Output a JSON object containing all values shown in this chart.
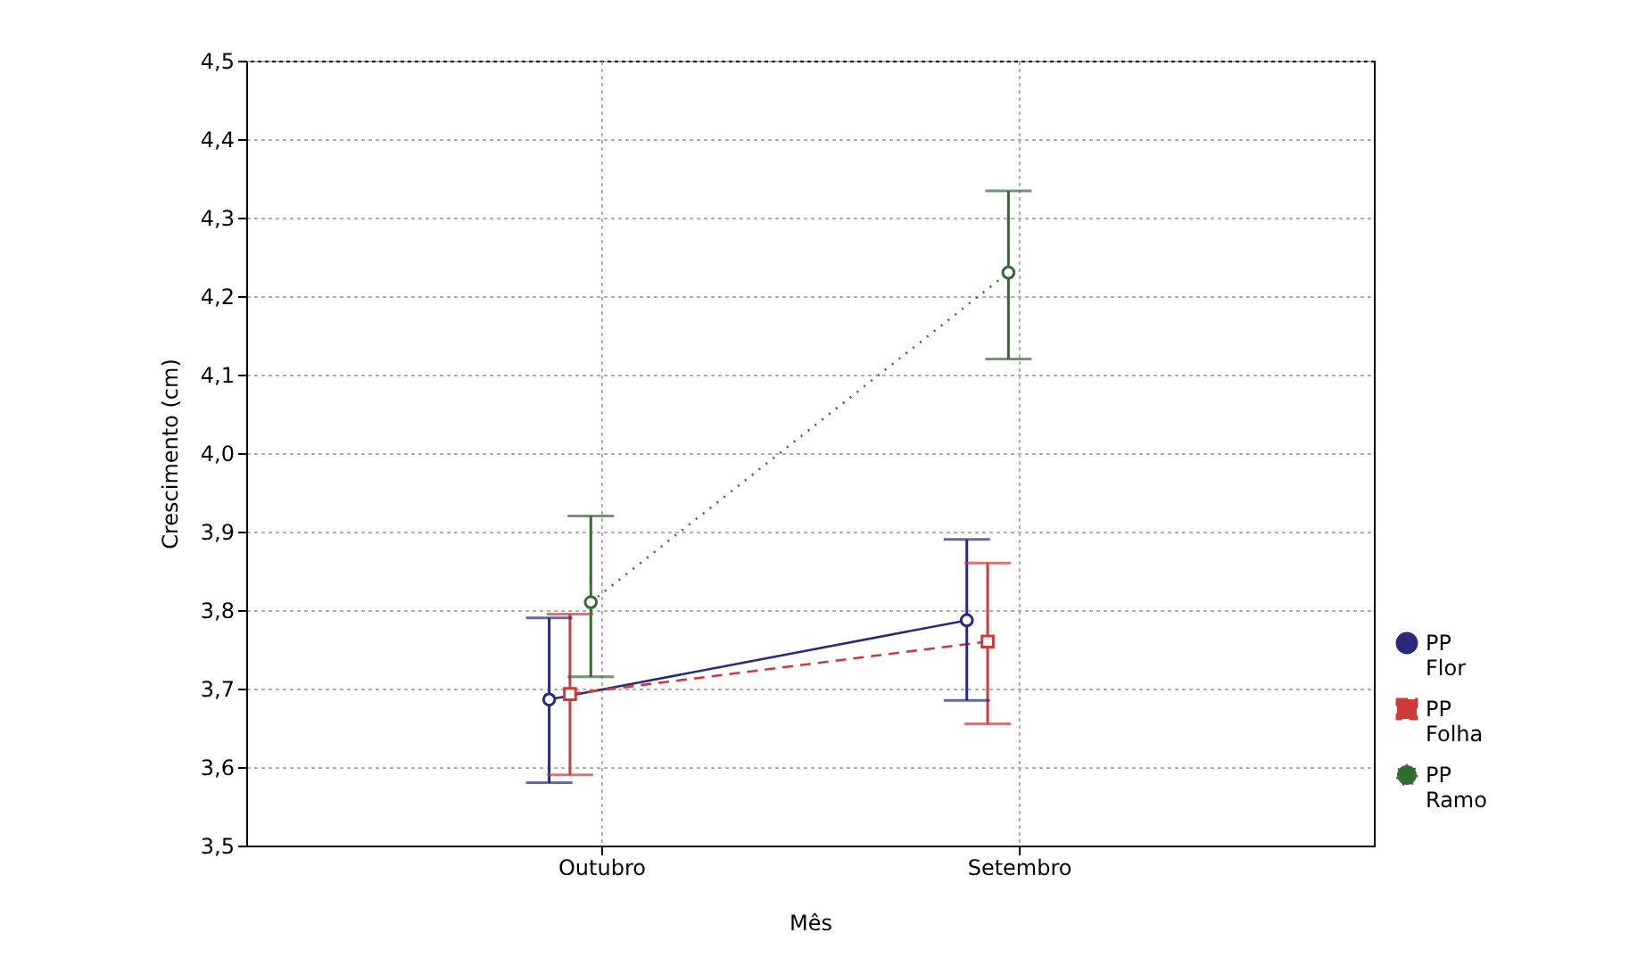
{
  "chart_data": {
    "type": "line",
    "xlabel": "Mês",
    "ylabel": "Crescimento (cm)",
    "categories": [
      "Outubro",
      "Setembro"
    ],
    "ylim": [
      3.5,
      4.5
    ],
    "yticks": [
      {
        "value": 3.5,
        "label": "3,5"
      },
      {
        "value": 3.6,
        "label": "3,6"
      },
      {
        "value": 3.7,
        "label": "3,7"
      },
      {
        "value": 3.8,
        "label": "3,8"
      },
      {
        "value": 3.9,
        "label": "3,9"
      },
      {
        "value": 4.0,
        "label": "4,0"
      },
      {
        "value": 4.1,
        "label": "4,1"
      },
      {
        "value": 4.2,
        "label": "4,2"
      },
      {
        "value": 4.3,
        "label": "4,3"
      },
      {
        "value": 4.4,
        "label": "4,4"
      },
      {
        "value": 4.5,
        "label": "4,5"
      }
    ],
    "grid": true,
    "legend": "bottom right",
    "series": [
      {
        "name": "PP Flor",
        "color": "#2a2a7a",
        "values": [
          3.686,
          3.787
        ],
        "errors": [
          [
            3.58,
            3.79
          ],
          [
            3.685,
            3.89
          ]
        ],
        "marker": "circle",
        "line_style": "solid"
      },
      {
        "name": "PP Folha",
        "color": "#cc3a3a",
        "values": [
          3.693,
          3.76
        ],
        "errors": [
          [
            3.59,
            3.795
          ],
          [
            3.655,
            3.86
          ]
        ],
        "marker": "square",
        "line_style": "dashed"
      },
      {
        "name": "PP Ramo",
        "color": "#2f6e2f",
        "values": [
          3.81,
          4.23
        ],
        "errors": [
          [
            3.715,
            3.92
          ],
          [
            4.12,
            4.334
          ]
        ],
        "marker": "circle",
        "line_style": "dotted"
      }
    ]
  }
}
